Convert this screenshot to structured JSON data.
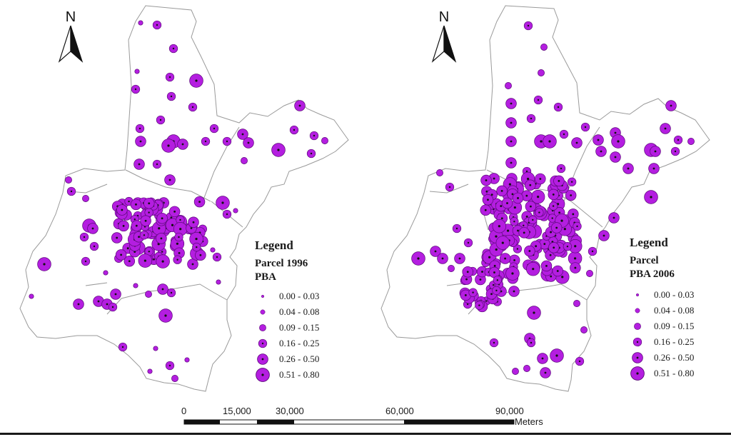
{
  "maps": [
    {
      "north_label": "N",
      "legend": {
        "heading": "Legend",
        "line1": "Parcel 1996",
        "line2": "PBA",
        "classes": [
          "0.00 - 0.03",
          "0.04 - 0.08",
          "0.09 - 0.15",
          "0.16 - 0.25",
          "0.26 - 0.50",
          "0.51 - 0.80"
        ]
      }
    },
    {
      "north_label": "N",
      "legend": {
        "heading": "Legend",
        "line1": "Parcel",
        "line2": "PBA  2006",
        "classes": [
          "0.00 - 0.03",
          "0.04 - 0.08",
          "0.09 - 0.15",
          "0.16 - 0.25",
          "0.26 - 0.50",
          "0.51 - 0.80"
        ]
      }
    }
  ],
  "scale_bar": {
    "ticks": [
      "0",
      "15,000",
      "30,000",
      "60,000",
      "90,000"
    ],
    "unit": "Meters"
  },
  "colors": {
    "parcel_fill": "#b41ee0",
    "parcel_stroke": "#5a0a78",
    "boundary": "#9a9a9a"
  }
}
